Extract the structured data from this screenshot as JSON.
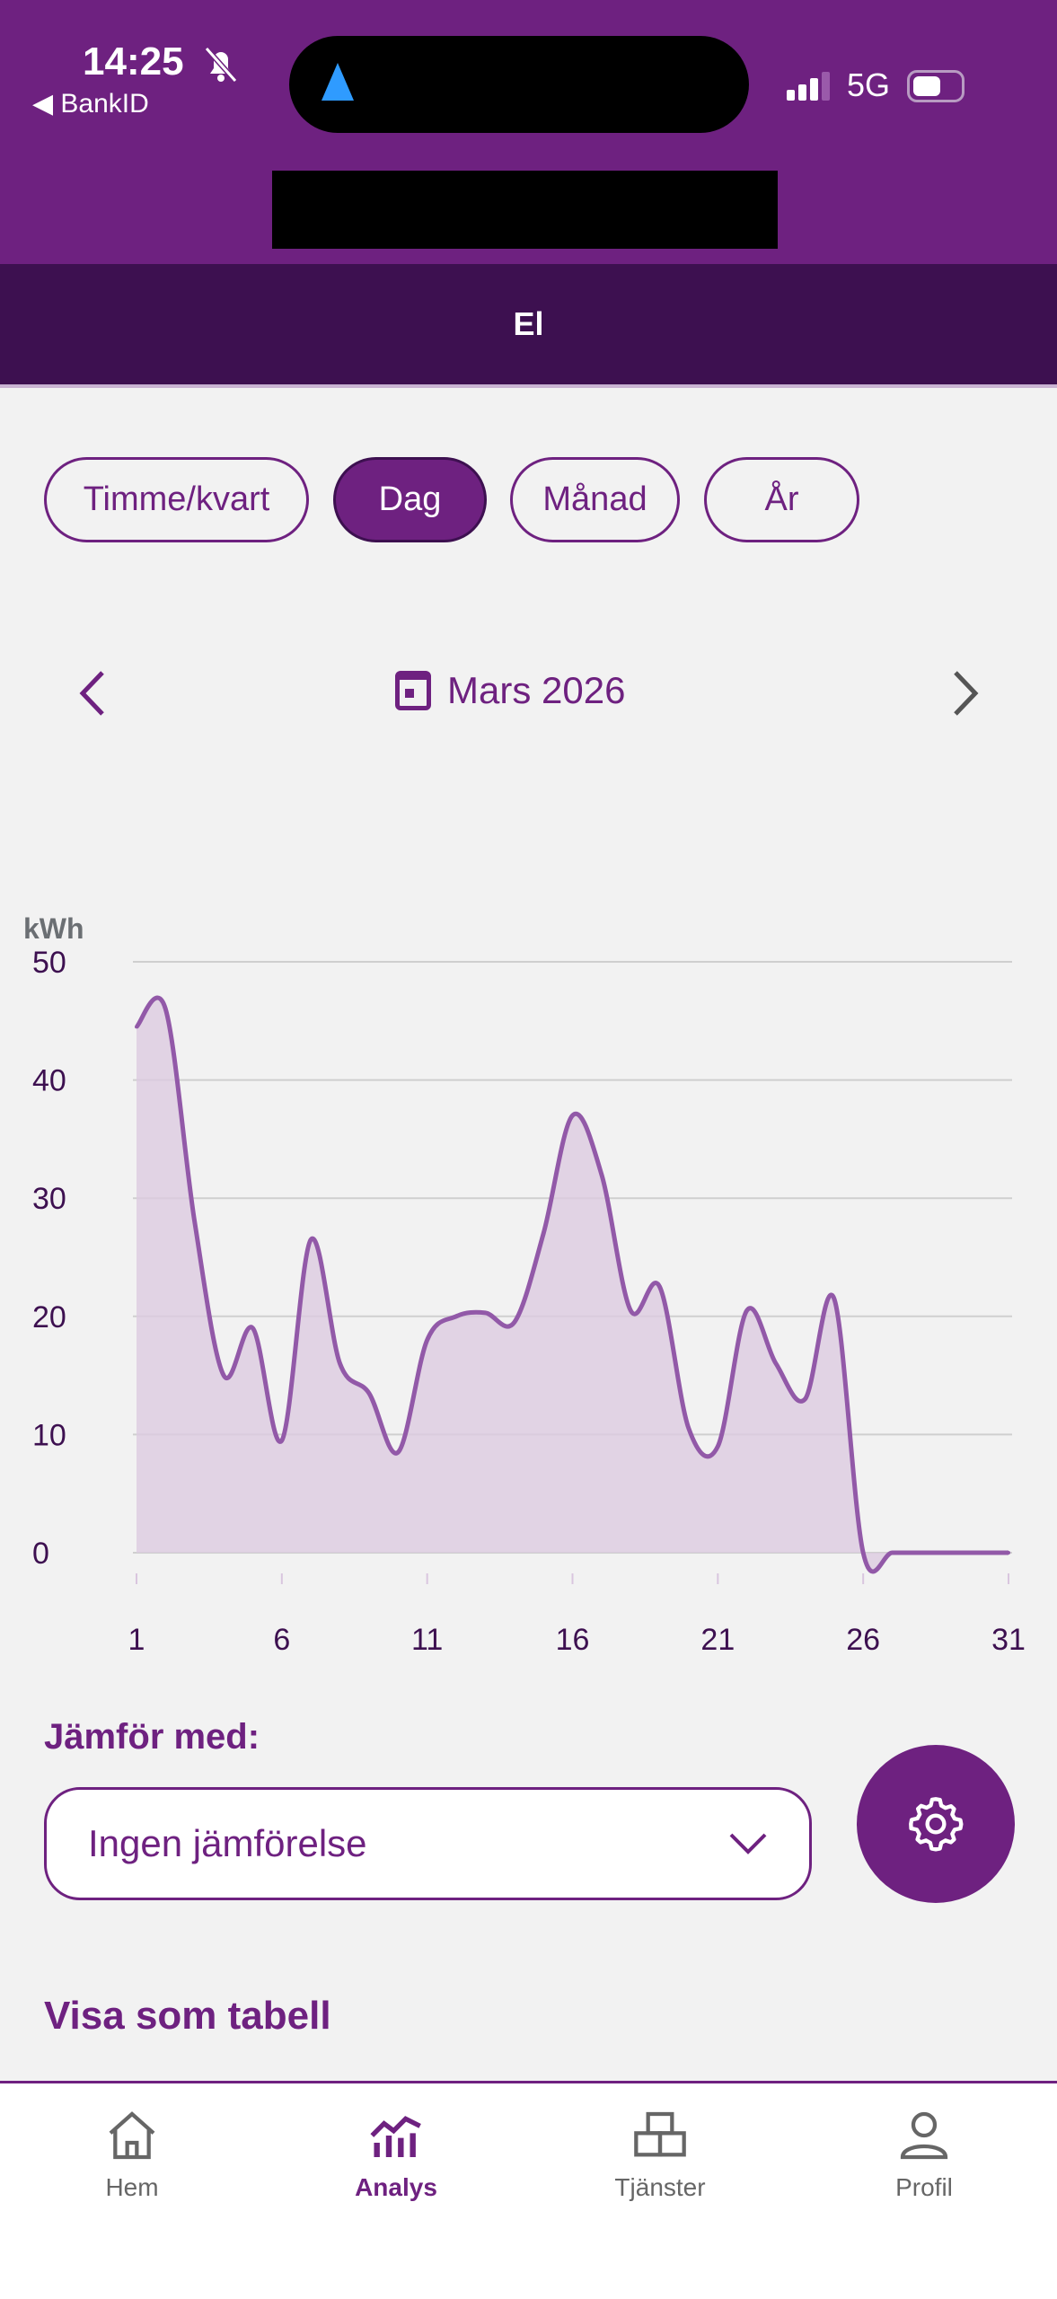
{
  "status_bar": {
    "time": "14:25",
    "back_app": "BankID",
    "network": "5G"
  },
  "header": {
    "title": "El"
  },
  "periods": [
    {
      "label": "Timme/kvart",
      "active": false
    },
    {
      "label": "Dag",
      "active": true
    },
    {
      "label": "Månad",
      "active": false
    },
    {
      "label": "År",
      "active": false
    }
  ],
  "date": {
    "label": "Mars 2026"
  },
  "chart_data": {
    "type": "area",
    "title": "",
    "xlabel": "",
    "ylabel": "kWh",
    "ylim": [
      0,
      50
    ],
    "yticks": [
      "0",
      "10",
      "20",
      "30",
      "40",
      "50"
    ],
    "xticks": [
      "1",
      "6",
      "11",
      "16",
      "21",
      "26",
      "31"
    ],
    "x": [
      1,
      2,
      3,
      4,
      5,
      6,
      7,
      8,
      9,
      10,
      11,
      12,
      13,
      14,
      15,
      16,
      17,
      18,
      19,
      20,
      21,
      22,
      23,
      24,
      25,
      26,
      27,
      28,
      29,
      30,
      31
    ],
    "series": [
      {
        "name": "El",
        "values": [
          44.5,
          46,
          28,
          15,
          19,
          9.5,
          26.5,
          16,
          13.5,
          8.5,
          18,
          20,
          20.3,
          19.5,
          27,
          37,
          32,
          20.5,
          22.5,
          10.5,
          9,
          20.5,
          16,
          13,
          21.5,
          0,
          0,
          0,
          0,
          0,
          0
        ]
      }
    ],
    "grid": true,
    "colors": {
      "line": "#9259a8",
      "fill": "#dccbe0"
    }
  },
  "compare": {
    "label": "Jämför med:",
    "selected": "Ingen jämförelse"
  },
  "table_link": "Visa som tabell",
  "bottom_nav": [
    {
      "label": "Hem"
    },
    {
      "label": "Analys"
    },
    {
      "label": "Tjänster"
    },
    {
      "label": "Profil"
    }
  ]
}
